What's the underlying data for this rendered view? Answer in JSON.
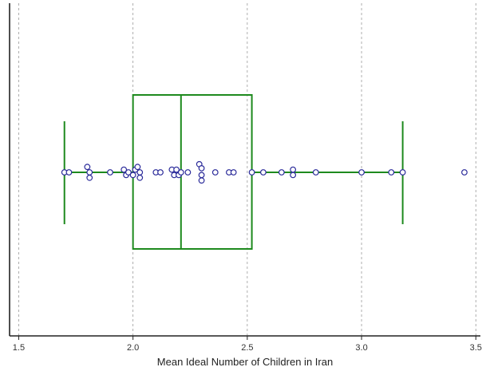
{
  "chart_data": {
    "type": "box",
    "xlabel": "Mean Ideal Number of Children in Iran",
    "xlim": [
      1.46,
      3.52
    ],
    "x_ticks": [
      "1.5",
      "2.0",
      "2.5",
      "3.0",
      "3.5"
    ],
    "x_tick_values": [
      1.5,
      2.0,
      2.5,
      3.0,
      3.5
    ],
    "grid": true,
    "grid_style": "dashed-vertical",
    "box": {
      "whisker_low": 1.7,
      "q1": 2.0,
      "median": 2.21,
      "q3": 2.52,
      "whisker_high": 3.18
    },
    "points": [
      {
        "x": 1.7,
        "jitter": 0
      },
      {
        "x": 1.72,
        "jitter": 0
      },
      {
        "x": 1.8,
        "jitter": 2
      },
      {
        "x": 1.81,
        "jitter": 0
      },
      {
        "x": 1.81,
        "jitter": -2
      },
      {
        "x": 1.9,
        "jitter": 0
      },
      {
        "x": 1.96,
        "jitter": 1
      },
      {
        "x": 1.97,
        "jitter": -1
      },
      {
        "x": 1.98,
        "jitter": 0
      },
      {
        "x": 2.0,
        "jitter": -1
      },
      {
        "x": 2.01,
        "jitter": 1
      },
      {
        "x": 2.02,
        "jitter": 2
      },
      {
        "x": 2.03,
        "jitter": 0
      },
      {
        "x": 2.03,
        "jitter": -2
      },
      {
        "x": 2.1,
        "jitter": 0
      },
      {
        "x": 2.12,
        "jitter": 0
      },
      {
        "x": 2.17,
        "jitter": 1
      },
      {
        "x": 2.18,
        "jitter": -1
      },
      {
        "x": 2.19,
        "jitter": 1
      },
      {
        "x": 2.2,
        "jitter": -1
      },
      {
        "x": 2.21,
        "jitter": 0
      },
      {
        "x": 2.24,
        "jitter": 0
      },
      {
        "x": 2.29,
        "jitter": 3
      },
      {
        "x": 2.3,
        "jitter": 1.5
      },
      {
        "x": 2.3,
        "jitter": -1
      },
      {
        "x": 2.3,
        "jitter": -3
      },
      {
        "x": 2.36,
        "jitter": 0
      },
      {
        "x": 2.42,
        "jitter": 0
      },
      {
        "x": 2.44,
        "jitter": 0
      },
      {
        "x": 2.52,
        "jitter": 0
      },
      {
        "x": 2.57,
        "jitter": 0
      },
      {
        "x": 2.65,
        "jitter": 0
      },
      {
        "x": 2.7,
        "jitter": 1
      },
      {
        "x": 2.7,
        "jitter": -1
      },
      {
        "x": 2.8,
        "jitter": 0
      },
      {
        "x": 3.0,
        "jitter": 0
      },
      {
        "x": 3.13,
        "jitter": 0
      },
      {
        "x": 3.18,
        "jitter": 0
      },
      {
        "x": 3.45,
        "jitter": 0
      }
    ],
    "colors": {
      "box": "#1e8a1e",
      "point_stroke": "#2b2b9a",
      "point_fill": "#ffffff",
      "grid": "#9a9a9a",
      "axis": "#222222"
    }
  }
}
